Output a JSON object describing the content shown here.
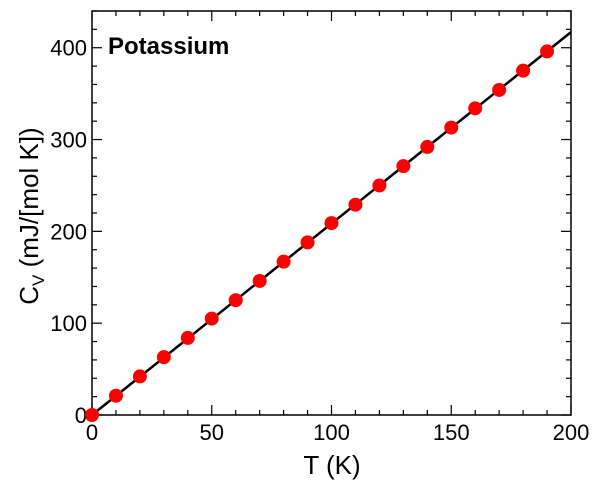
{
  "chart_data": {
    "type": "scatter",
    "title": "Potassium",
    "xlabel": "T (K)",
    "ylabel_main": "C",
    "ylabel_sub": "V",
    "ylabel_rest": " (mJ/[mol K])",
    "xlim": [
      0,
      200
    ],
    "ylim": [
      0,
      440
    ],
    "x_ticks": [
      0,
      50,
      100,
      150,
      200
    ],
    "y_ticks": [
      0,
      100,
      200,
      300,
      400
    ],
    "x_minor_step": 10,
    "y_minor_step": 20,
    "grid": false,
    "colors": {
      "points": "#ff0000",
      "fit_line": "#000000"
    },
    "series": [
      {
        "kind": "points",
        "x": [
          0,
          10,
          20,
          30,
          40,
          50,
          60,
          70,
          80,
          90,
          100,
          110,
          120,
          130,
          140,
          150,
          160,
          170,
          180,
          190
        ],
        "y": [
          0,
          21,
          42,
          63,
          84,
          105,
          125,
          146,
          167,
          188,
          209,
          229,
          250,
          271,
          292,
          313,
          334,
          354,
          375,
          396
        ]
      },
      {
        "kind": "line",
        "x": [
          0,
          200
        ],
        "y": [
          0,
          417
        ]
      }
    ]
  }
}
